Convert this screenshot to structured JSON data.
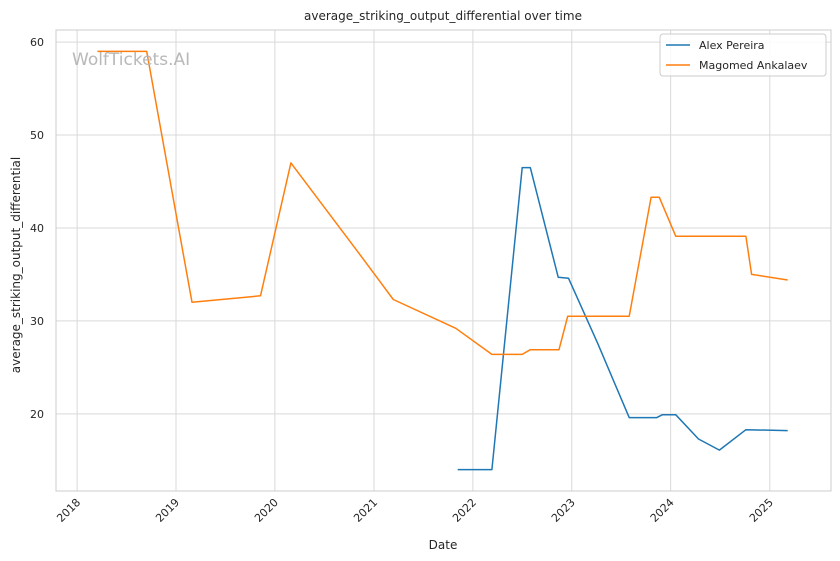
{
  "chart_data": {
    "type": "line",
    "title": "average_striking_output_differential over time",
    "xlabel": "Date",
    "ylabel": "average_striking_output_differential",
    "watermark": "WolfTickets.AI",
    "x_ticks": [
      "2018",
      "2019",
      "2020",
      "2021",
      "2022",
      "2023",
      "2024",
      "2025"
    ],
    "y_ticks": [
      20,
      30,
      40,
      50,
      60
    ],
    "xlim": [
      "2017-10-15",
      "2025-08-15"
    ],
    "ylim": [
      11.7,
      61.3
    ],
    "grid": true,
    "legend_position": "top-right",
    "series": [
      {
        "name": "Alex Pereira",
        "color": "#1f77b4",
        "points": [
          [
            "2021-11-06",
            14.0
          ],
          [
            "2022-03-12",
            14.0
          ],
          [
            "2022-07-02",
            46.5
          ],
          [
            "2022-08-01",
            46.5
          ],
          [
            "2022-11-12",
            34.7
          ],
          [
            "2022-12-20",
            34.6
          ],
          [
            "2023-04-08",
            27.5
          ],
          [
            "2023-08-01",
            19.6
          ],
          [
            "2023-11-11",
            19.6
          ],
          [
            "2023-12-01",
            19.9
          ],
          [
            "2024-01-20",
            19.9
          ],
          [
            "2024-04-13",
            17.3
          ],
          [
            "2024-06-29",
            16.1
          ],
          [
            "2024-10-05",
            18.3
          ],
          [
            "2025-03-08",
            18.2
          ]
        ]
      },
      {
        "name": "Magomed Ankalaev",
        "color": "#ff7f0e",
        "points": [
          [
            "2018-03-17",
            59.0
          ],
          [
            "2018-09-15",
            59.0
          ],
          [
            "2019-03-01",
            32.0
          ],
          [
            "2019-11-09",
            32.7
          ],
          [
            "2020-02-29",
            47.0
          ],
          [
            "2020-10-24",
            37.8
          ],
          [
            "2021-03-13",
            32.3
          ],
          [
            "2021-10-30",
            29.2
          ],
          [
            "2022-03-12",
            26.4
          ],
          [
            "2022-07-02",
            26.4
          ],
          [
            "2022-08-01",
            26.9
          ],
          [
            "2022-11-15",
            26.9
          ],
          [
            "2022-12-17",
            30.5
          ],
          [
            "2023-08-01",
            30.5
          ],
          [
            "2023-10-21",
            43.3
          ],
          [
            "2023-11-20",
            43.3
          ],
          [
            "2024-01-20",
            39.1
          ],
          [
            "2024-10-05",
            39.1
          ],
          [
            "2024-10-26",
            35.0
          ],
          [
            "2025-03-08",
            34.4
          ]
        ]
      }
    ]
  }
}
